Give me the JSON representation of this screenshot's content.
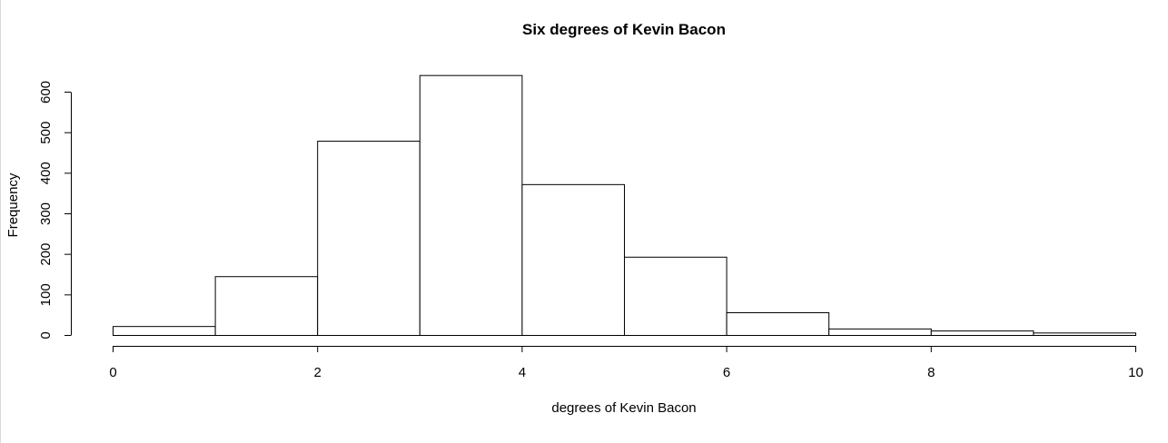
{
  "chart_data": {
    "type": "bar",
    "title": "Six degrees of Kevin Bacon",
    "xlabel": "degrees of Kevin Bacon",
    "ylabel": "Frequency",
    "bins": [
      [
        0,
        1
      ],
      [
        1,
        2
      ],
      [
        2,
        3
      ],
      [
        3,
        4
      ],
      [
        4,
        5
      ],
      [
        5,
        6
      ],
      [
        6,
        7
      ],
      [
        7,
        8
      ],
      [
        8,
        9
      ],
      [
        9,
        10
      ]
    ],
    "values": [
      22,
      145,
      479,
      641,
      372,
      193,
      56,
      16,
      11,
      6
    ],
    "xlim": [
      0,
      10
    ],
    "ylim": [
      0,
      600
    ],
    "x_ticks": [
      0,
      2,
      4,
      6,
      8,
      10
    ],
    "y_ticks": [
      0,
      100,
      200,
      300,
      400,
      500,
      600
    ],
    "grid": false,
    "legend": "none",
    "bar_fill": "#ffffff",
    "bar_stroke": "#000000"
  }
}
